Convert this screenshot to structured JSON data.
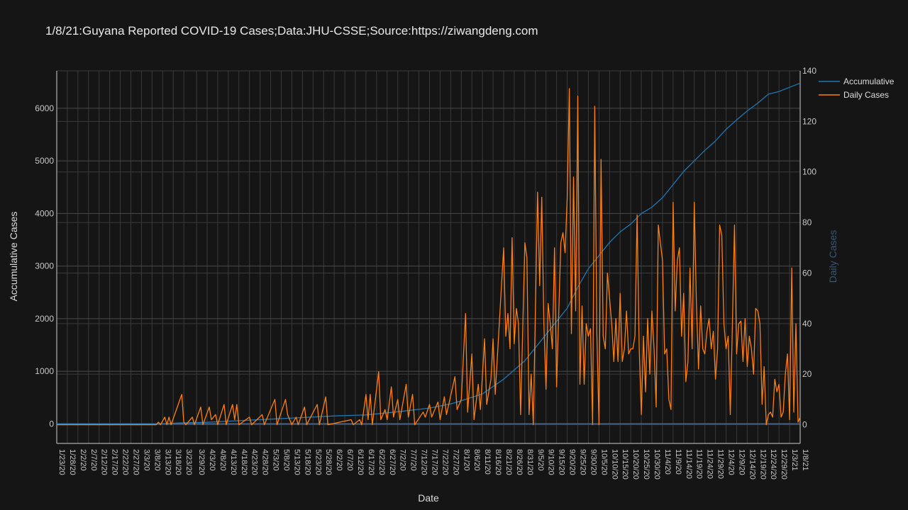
{
  "title": "1/8/21:Guyana Reported COVID-19 Cases;Data:JHU-CSSE;Source:https://ziwangdeng.com",
  "chart_data": {
    "type": "line",
    "title": "1/8/21:Guyana Reported COVID-19 Cases;Data:JHU-CSSE;Source:https://ziwangdeng.com",
    "xlabel": "Date",
    "ylabel": "Accumulative Cases",
    "y2label": "Daily Cases",
    "x_range": [
      "1/23/20",
      "1/8/21"
    ],
    "ylim": [
      -372,
      6713
    ],
    "y2lim": [
      -7.4,
      140
    ],
    "yticks": [
      0,
      1000,
      2000,
      3000,
      4000,
      5000,
      6000
    ],
    "y2ticks": [
      0,
      20,
      40,
      60,
      80,
      100,
      120,
      140
    ],
    "xticks": [
      "1/23/20",
      "1/28/20",
      "2/2/20",
      "2/7/20",
      "2/12/20",
      "2/17/20",
      "2/22/20",
      "2/27/20",
      "3/3/20",
      "3/8/20",
      "3/13/20",
      "3/18/20",
      "3/23/20",
      "3/29/20",
      "4/3/20",
      "4/8/20",
      "4/13/20",
      "4/18/20",
      "4/23/20",
      "4/28/20",
      "5/3/20",
      "5/8/20",
      "5/13/20",
      "5/18/20",
      "5/23/20",
      "5/28/20",
      "6/2/20",
      "6/7/20",
      "6/12/20",
      "6/17/20",
      "6/22/20",
      "6/27/20",
      "7/2/20",
      "7/7/20",
      "7/12/20",
      "7/17/20",
      "7/22/20",
      "7/27/20",
      "8/1/20",
      "8/6/20",
      "8/11/20",
      "8/16/20",
      "8/21/20",
      "8/26/20",
      "8/31/20",
      "9/5/20",
      "9/10/20",
      "9/15/20",
      "9/20/20",
      "9/25/20",
      "9/30/20",
      "10/5/20",
      "10/10/20",
      "10/15/20",
      "10/20/20",
      "10/25/20",
      "10/30/20",
      "11/4/20",
      "11/9/20",
      "11/14/20",
      "11/19/20",
      "11/24/20",
      "11/29/20",
      "12/4/20",
      "12/9/20",
      "12/14/20",
      "12/19/20",
      "12/24/20",
      "12/29/20",
      "1/3/21",
      "1/8/21"
    ],
    "grid": true,
    "legend_position": "top-right",
    "series": [
      {
        "name": "Accumulative",
        "axis": "left",
        "color": "#1f77b4",
        "points": [
          [
            "1/23/20",
            0
          ],
          [
            "3/10/20",
            0
          ],
          [
            "3/13/20",
            4
          ],
          [
            "3/23/20",
            20
          ],
          [
            "4/3/20",
            30
          ],
          [
            "4/18/20",
            60
          ],
          [
            "5/3/20",
            90
          ],
          [
            "5/18/20",
            120
          ],
          [
            "6/2/20",
            150
          ],
          [
            "6/17/20",
            170
          ],
          [
            "7/2/20",
            230
          ],
          [
            "7/17/20",
            300
          ],
          [
            "7/27/20",
            380
          ],
          [
            "8/1/20",
            440
          ],
          [
            "8/11/20",
            570
          ],
          [
            "8/21/20",
            850
          ],
          [
            "8/31/20",
            1200
          ],
          [
            "9/10/20",
            1700
          ],
          [
            "9/20/20",
            2200
          ],
          [
            "9/25/20",
            2600
          ],
          [
            "9/30/20",
            2950
          ],
          [
            "10/5/20",
            3200
          ],
          [
            "10/10/20",
            3450
          ],
          [
            "10/15/20",
            3650
          ],
          [
            "10/20/20",
            3800
          ],
          [
            "10/25/20",
            4000
          ],
          [
            "10/30/20",
            4120
          ],
          [
            "11/4/20",
            4300
          ],
          [
            "11/9/20",
            4550
          ],
          [
            "11/14/20",
            4800
          ],
          [
            "11/19/20",
            5000
          ],
          [
            "11/24/20",
            5200
          ],
          [
            "11/29/20",
            5380
          ],
          [
            "12/4/20",
            5600
          ],
          [
            "12/9/20",
            5780
          ],
          [
            "12/14/20",
            5950
          ],
          [
            "12/19/20",
            6100
          ],
          [
            "12/24/20",
            6270
          ],
          [
            "12/29/20",
            6320
          ],
          [
            "1/3/21",
            6400
          ],
          [
            "1/8/21",
            6480
          ]
        ]
      },
      {
        "name": "Daily Cases",
        "axis": "right",
        "color": "#ff7f0e",
        "points": [
          [
            "1/23/20",
            0
          ],
          [
            "3/10/20",
            0
          ],
          [
            "3/11/20",
            1
          ],
          [
            "3/12/20",
            0
          ],
          [
            "3/14/20",
            3
          ],
          [
            "3/15/20",
            0
          ],
          [
            "3/16/20",
            3
          ],
          [
            "3/17/20",
            0
          ],
          [
            "3/22/20",
            12
          ],
          [
            "3/23/20",
            1
          ],
          [
            "3/24/20",
            0
          ],
          [
            "3/27/20",
            3
          ],
          [
            "3/28/20",
            0
          ],
          [
            "3/31/20",
            7
          ],
          [
            "4/1/20",
            0
          ],
          [
            "4/4/20",
            7
          ],
          [
            "4/5/20",
            2
          ],
          [
            "4/7/20",
            4
          ],
          [
            "4/8/20",
            0
          ],
          [
            "4/11/20",
            8
          ],
          [
            "4/12/20",
            0
          ],
          [
            "4/15/20",
            8
          ],
          [
            "4/16/20",
            2
          ],
          [
            "4/17/20",
            8
          ],
          [
            "4/18/20",
            0
          ],
          [
            "4/23/20",
            3
          ],
          [
            "4/24/20",
            0
          ],
          [
            "4/29/20",
            4
          ],
          [
            "4/30/20",
            0
          ],
          [
            "5/5/20",
            10
          ],
          [
            "5/6/20",
            0
          ],
          [
            "5/10/20",
            10
          ],
          [
            "5/11/20",
            4
          ],
          [
            "5/12/20",
            2
          ],
          [
            "5/13/20",
            0
          ],
          [
            "5/15/20",
            3
          ],
          [
            "5/16/20",
            0
          ],
          [
            "5/19/20",
            7
          ],
          [
            "5/20/20",
            0
          ],
          [
            "5/25/20",
            8
          ],
          [
            "5/26/20",
            0
          ],
          [
            "5/29/20",
            11
          ],
          [
            "5/30/20",
            0
          ],
          [
            "6/10/20",
            2
          ],
          [
            "6/11/20",
            0
          ],
          [
            "6/14/20",
            2
          ],
          [
            "6/15/20",
            0
          ],
          [
            "6/17/20",
            12
          ],
          [
            "6/18/20",
            2
          ],
          [
            "6/19/20",
            12
          ],
          [
            "6/20/20",
            0
          ],
          [
            "6/23/20",
            21
          ],
          [
            "6/24/20",
            2
          ],
          [
            "6/26/20",
            6
          ],
          [
            "6/27/20",
            2
          ],
          [
            "6/29/20",
            15
          ],
          [
            "6/30/20",
            3
          ],
          [
            "7/2/20",
            10
          ],
          [
            "7/3/20",
            2
          ],
          [
            "7/6/20",
            16
          ],
          [
            "7/7/20",
            3
          ],
          [
            "7/9/20",
            12
          ],
          [
            "7/10/20",
            0
          ],
          [
            "7/14/20",
            5
          ],
          [
            "7/15/20",
            3
          ],
          [
            "7/17/20",
            8
          ],
          [
            "7/18/20",
            3
          ],
          [
            "7/21/20",
            9
          ],
          [
            "7/22/20",
            2
          ],
          [
            "7/24/20",
            11
          ],
          [
            "7/25/20",
            4
          ],
          [
            "7/29/20",
            19
          ],
          [
            "7/30/20",
            6
          ],
          [
            "8/1/20",
            10
          ],
          [
            "8/3/20",
            44
          ],
          [
            "8/4/20",
            5
          ],
          [
            "8/6/20",
            28
          ],
          [
            "8/7/20",
            2
          ],
          [
            "8/9/20",
            16
          ],
          [
            "8/10/20",
            6
          ],
          [
            "8/12/20",
            34
          ],
          [
            "8/13/20",
            8
          ],
          [
            "8/15/20",
            18
          ],
          [
            "8/16/20",
            34
          ],
          [
            "8/17/20",
            12
          ],
          [
            "8/21/20",
            70
          ],
          [
            "8/22/20",
            35
          ],
          [
            "8/23/20",
            44
          ],
          [
            "8/24/20",
            30
          ],
          [
            "8/25/20",
            74
          ],
          [
            "8/26/20",
            32
          ],
          [
            "8/27/20",
            46
          ],
          [
            "8/28/20",
            40
          ],
          [
            "8/29/20",
            4
          ],
          [
            "8/31/20",
            72
          ],
          [
            "9/1/20",
            66
          ],
          [
            "9/2/20",
            4
          ],
          [
            "9/3/20",
            20
          ],
          [
            "9/4/20",
            0
          ],
          [
            "9/6/20",
            92
          ],
          [
            "9/7/20",
            55
          ],
          [
            "9/8/20",
            90
          ],
          [
            "9/9/20",
            40
          ],
          [
            "9/10/20",
            14
          ],
          [
            "9/11/20",
            48
          ],
          [
            "9/12/20",
            40
          ],
          [
            "9/13/20",
            30
          ],
          [
            "9/14/20",
            70
          ],
          [
            "9/15/20",
            15
          ],
          [
            "9/17/20",
            72
          ],
          [
            "9/18/20",
            76
          ],
          [
            "9/19/20",
            68
          ],
          [
            "9/20/20",
            90
          ],
          [
            "9/21/20",
            133
          ],
          [
            "9/22/20",
            36
          ],
          [
            "9/23/20",
            98
          ],
          [
            "9/24/20",
            45
          ],
          [
            "9/25/20",
            130
          ],
          [
            "9/26/20",
            16
          ],
          [
            "9/27/20",
            47
          ],
          [
            "9/28/20",
            16
          ],
          [
            "9/29/20",
            40
          ],
          [
            "9/30/20",
            35
          ],
          [
            "10/1/20",
            38
          ],
          [
            "10/2/20",
            0
          ],
          [
            "10/3/20",
            126
          ],
          [
            "10/4/20",
            36
          ],
          [
            "10/5/20",
            0
          ],
          [
            "10/6/20",
            105
          ],
          [
            "10/7/20",
            35
          ],
          [
            "10/8/20",
            30
          ],
          [
            "10/9/20",
            60
          ],
          [
            "10/10/20",
            50
          ],
          [
            "10/11/20",
            40
          ],
          [
            "10/12/20",
            25
          ],
          [
            "10/13/20",
            42
          ],
          [
            "10/14/20",
            25
          ],
          [
            "10/15/20",
            52
          ],
          [
            "10/16/20",
            25
          ],
          [
            "10/17/20",
            30
          ],
          [
            "10/18/20",
            45
          ],
          [
            "10/19/20",
            28
          ],
          [
            "10/20/20",
            30
          ],
          [
            "10/21/20",
            30
          ],
          [
            "10/22/20",
            35
          ],
          [
            "10/23/20",
            83
          ],
          [
            "10/24/20",
            30
          ],
          [
            "10/25/20",
            4
          ],
          [
            "10/26/20",
            35
          ],
          [
            "10/27/20",
            13
          ],
          [
            "10/28/20",
            42
          ],
          [
            "10/29/20",
            20
          ],
          [
            "10/30/20",
            45
          ],
          [
            "10/31/20",
            30
          ],
          [
            "11/1/20",
            7
          ],
          [
            "11/2/20",
            79
          ],
          [
            "11/3/20",
            72
          ],
          [
            "11/4/20",
            65
          ],
          [
            "11/5/20",
            28
          ],
          [
            "11/6/20",
            30
          ],
          [
            "11/7/20",
            10
          ],
          [
            "11/8/20",
            6
          ],
          [
            "11/9/20",
            88
          ],
          [
            "11/10/20",
            45
          ],
          [
            "11/11/20",
            65
          ],
          [
            "11/12/20",
            70
          ],
          [
            "11/13/20",
            35
          ],
          [
            "11/14/20",
            52
          ],
          [
            "11/15/20",
            17
          ],
          [
            "11/16/20",
            25
          ],
          [
            "11/17/20",
            62
          ],
          [
            "11/18/20",
            30
          ],
          [
            "11/19/20",
            88
          ],
          [
            "11/20/20",
            48
          ],
          [
            "11/21/20",
            22
          ],
          [
            "11/22/20",
            47
          ],
          [
            "11/23/20",
            30
          ],
          [
            "11/24/20",
            28
          ],
          [
            "11/25/20",
            37
          ],
          [
            "11/26/20",
            42
          ],
          [
            "11/27/20",
            30
          ],
          [
            "11/28/20",
            37
          ],
          [
            "11/29/20",
            18
          ],
          [
            "11/30/20",
            30
          ],
          [
            "12/1/20",
            79
          ],
          [
            "12/2/20",
            75
          ],
          [
            "12/3/20",
            40
          ],
          [
            "12/4/20",
            30
          ],
          [
            "12/5/20",
            35
          ],
          [
            "12/6/20",
            4
          ],
          [
            "12/7/20",
            40
          ],
          [
            "12/8/20",
            79
          ],
          [
            "12/9/20",
            28
          ],
          [
            "12/10/20",
            40
          ],
          [
            "12/11/20",
            41
          ],
          [
            "12/12/20",
            25
          ],
          [
            "12/13/20",
            42
          ],
          [
            "12/14/20",
            23
          ],
          [
            "12/15/20",
            35
          ],
          [
            "12/16/20",
            30
          ],
          [
            "12/17/20",
            20
          ],
          [
            "12/18/20",
            46
          ],
          [
            "12/19/20",
            45
          ],
          [
            "12/20/20",
            40
          ],
          [
            "12/21/20",
            8
          ],
          [
            "12/22/20",
            23
          ],
          [
            "12/23/20",
            0
          ],
          [
            "12/24/20",
            4
          ],
          [
            "12/25/20",
            5
          ],
          [
            "12/26/20",
            3
          ],
          [
            "12/27/20",
            18
          ],
          [
            "12/28/20",
            13
          ],
          [
            "12/29/20",
            16
          ],
          [
            "12/30/20",
            3
          ],
          [
            "12/31/20",
            5
          ],
          [
            "1/1/21",
            20
          ],
          [
            "1/2/21",
            28
          ],
          [
            "1/3/21",
            2
          ],
          [
            "1/4/21",
            62
          ],
          [
            "1/5/21",
            5
          ],
          [
            "1/6/21",
            40
          ],
          [
            "1/7/21",
            1
          ],
          [
            "1/8/21",
            3
          ]
        ]
      }
    ]
  }
}
